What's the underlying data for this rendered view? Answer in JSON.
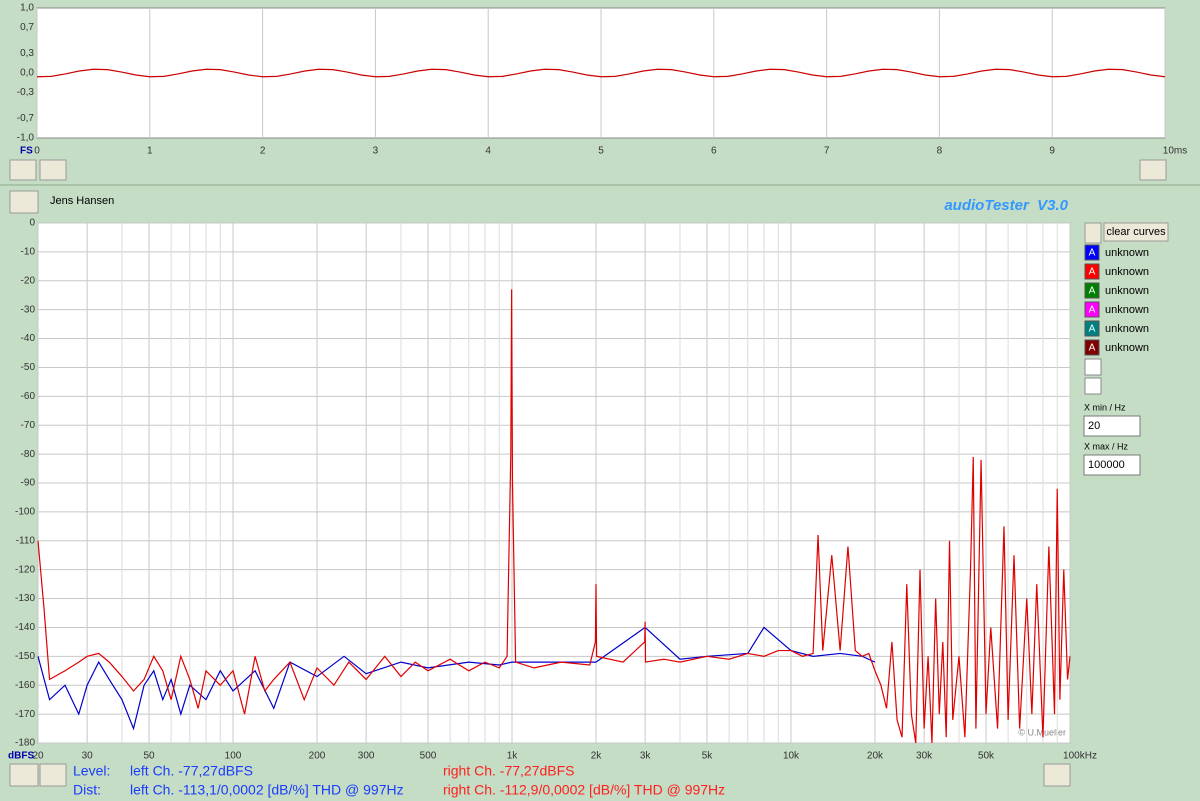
{
  "chart_data": [
    {
      "type": "line",
      "y_label": "FS",
      "xlim": [
        0,
        10
      ],
      "ylim": [
        -1,
        1
      ],
      "grid": "x",
      "xticks": [
        0,
        1,
        2,
        3,
        4,
        5,
        6,
        7,
        8,
        9,
        {
          "value": 10,
          "label": "10ms"
        }
      ],
      "yticks": [
        {
          "value": 1,
          "label": "1,0"
        },
        {
          "value": 0.7,
          "label": "0,7"
        },
        {
          "value": 0.3,
          "label": "0,3"
        },
        {
          "value": 0,
          "label": "0,0"
        },
        {
          "value": -0.3,
          "label": "-0,3"
        },
        {
          "value": -0.7,
          "label": "-0,7"
        },
        {
          "value": -1,
          "label": "-1,0"
        }
      ],
      "series": [
        {
          "color": "#cc0000",
          "x": [
            0,
            0.125,
            0.25,
            0.375,
            0.5,
            0.625,
            0.75,
            0.875,
            1,
            1.125,
            1.25,
            1.375,
            1.5,
            1.625,
            1.75,
            1.875,
            2,
            2.125,
            2.25,
            2.375,
            2.5,
            2.625,
            2.75,
            2.875,
            3,
            3.125,
            3.25,
            3.375,
            3.5,
            3.625,
            3.75,
            3.875,
            4,
            4.125,
            4.25,
            4.375,
            4.5,
            4.625,
            4.75,
            4.875,
            5,
            5.125,
            5.25,
            5.375,
            5.5,
            5.625,
            5.75,
            5.875,
            6,
            6.125,
            6.25,
            6.375,
            6.5,
            6.625,
            6.75,
            6.875,
            7,
            7.125,
            7.25,
            7.375,
            7.5,
            7.625,
            7.75,
            7.875,
            8,
            8.125,
            8.25,
            8.375,
            8.5,
            8.625,
            8.75,
            8.875,
            9,
            9.125,
            9.25,
            9.375,
            9.5,
            9.625,
            9.75,
            9.875,
            10
          ],
          "values": [
            -0.058,
            -0.052,
            -0.015,
            0.031,
            0.058,
            0.052,
            0.015,
            -0.031,
            -0.058,
            -0.052,
            -0.015,
            0.031,
            0.058,
            0.052,
            0.015,
            -0.031,
            -0.058,
            -0.052,
            -0.015,
            0.031,
            0.058,
            0.052,
            0.015,
            -0.031,
            -0.058,
            -0.052,
            -0.015,
            0.031,
            0.058,
            0.052,
            0.015,
            -0.031,
            -0.058,
            -0.052,
            -0.015,
            0.031,
            0.058,
            0.052,
            0.015,
            -0.031,
            -0.058,
            -0.052,
            -0.015,
            0.031,
            0.058,
            0.052,
            0.015,
            -0.031,
            -0.058,
            -0.052,
            -0.015,
            0.031,
            0.058,
            0.052,
            0.015,
            -0.031,
            -0.058,
            -0.052,
            -0.015,
            0.031,
            0.058,
            0.052,
            0.015,
            -0.031,
            -0.058,
            -0.052,
            -0.015,
            0.031,
            0.058,
            0.052,
            0.015,
            -0.031,
            -0.058,
            -0.052,
            -0.015,
            0.031,
            0.058,
            0.052,
            0.015,
            -0.031,
            -0.058
          ]
        }
      ]
    },
    {
      "type": "line",
      "y_label": "dBFS",
      "x_log": true,
      "xlim": [
        20,
        100000
      ],
      "ylim": [
        -180,
        0
      ],
      "grid": "both",
      "xticks": [
        20,
        30,
        50,
        100,
        200,
        300,
        500,
        {
          "value": 1000,
          "label": "1k"
        },
        {
          "value": 2000,
          "label": "2k"
        },
        {
          "value": 3000,
          "label": "3k"
        },
        {
          "value": 5000,
          "label": "5k"
        },
        {
          "value": 10000,
          "label": "10k"
        },
        {
          "value": 20000,
          "label": "20k"
        },
        {
          "value": 30000,
          "label": "30k"
        },
        {
          "value": 50000,
          "label": "50k"
        },
        {
          "value": 100000,
          "label": "100kHz"
        }
      ],
      "x_minor_ticks": [
        40,
        60,
        70,
        80,
        90,
        400,
        600,
        700,
        800,
        900,
        4000,
        6000,
        7000,
        8000,
        9000,
        40000,
        60000,
        70000,
        80000,
        90000
      ],
      "yticks": [
        0,
        -10,
        -20,
        -30,
        -40,
        -50,
        -60,
        -70,
        -80,
        -90,
        -100,
        -110,
        -120,
        -130,
        -140,
        -150,
        -160,
        -170,
        -180
      ],
      "series": [
        {
          "color": "#0000cc",
          "x": [
            20,
            22,
            25,
            28,
            30,
            33,
            36,
            40,
            44,
            48,
            52,
            56,
            60,
            65,
            70,
            80,
            90,
            100,
            120,
            140,
            160,
            200,
            250,
            300,
            400,
            500,
            700,
            900,
            1000,
            1500,
            2000,
            3000,
            4000,
            5000,
            7000,
            8000,
            10000,
            12000,
            15000,
            18000,
            20000
          ],
          "values": [
            -150,
            -165,
            -160,
            -170,
            -160,
            -152,
            -158,
            -165,
            -175,
            -160,
            -155,
            -165,
            -158,
            -170,
            -160,
            -165,
            -155,
            -162,
            -155,
            -168,
            -152,
            -157,
            -150,
            -156,
            -152,
            -154,
            -152,
            -153,
            -152,
            -152,
            -152,
            -140,
            -151,
            -150,
            -149,
            -140,
            -148,
            -150,
            -149,
            -150,
            -152
          ]
        },
        {
          "color": "#e00000",
          "x": [
            20,
            21,
            22,
            25,
            28,
            30,
            33,
            36,
            40,
            44,
            48,
            52,
            56,
            60,
            65,
            70,
            75,
            80,
            90,
            100,
            110,
            120,
            130,
            140,
            160,
            180,
            200,
            230,
            260,
            300,
            350,
            400,
            450,
            500,
            600,
            700,
            800,
            900,
            960,
            990,
            997,
            1004,
            1030,
            1200,
            1500,
            1900,
            1990,
            2000,
            2010,
            2500,
            2990,
            3000,
            3010,
            3500,
            4000,
            5000,
            6000,
            7000,
            8000,
            9000,
            10000,
            11000,
            12000,
            12500,
            13000,
            14000,
            15000,
            16000,
            17000,
            18000,
            19000,
            20000,
            21000,
            22000,
            23000,
            24000,
            25000,
            26000,
            27000,
            28000,
            29000,
            30000,
            31000,
            32000,
            33000,
            34000,
            35000,
            36000,
            37000,
            38000,
            40000,
            42000,
            44000,
            45000,
            46000,
            48000,
            50000,
            52000,
            55000,
            58000,
            60000,
            63000,
            66000,
            70000,
            73000,
            76000,
            80000,
            84000,
            88000,
            90000,
            92000,
            95000,
            98000,
            100000
          ],
          "values": [
            -110,
            -133,
            -158,
            -155,
            -152,
            -150,
            -149,
            -152,
            -157,
            -162,
            -158,
            -150,
            -155,
            -165,
            -150,
            -158,
            -168,
            -155,
            -160,
            -155,
            -170,
            -150,
            -162,
            -158,
            -152,
            -165,
            -154,
            -160,
            -152,
            -158,
            -150,
            -157,
            -152,
            -155,
            -151,
            -155,
            -152,
            -154,
            -150,
            -80,
            -23,
            -90,
            -152,
            -154,
            -152,
            -153,
            -145,
            -125,
            -150,
            -152,
            -145,
            -138,
            -152,
            -151,
            -152,
            -150,
            -151,
            -149,
            -150,
            -148,
            -148,
            -150,
            -149,
            -108,
            -148,
            -115,
            -148,
            -112,
            -148,
            -150,
            -149,
            -155,
            -160,
            -168,
            -145,
            -172,
            -178,
            -125,
            -170,
            -180,
            -120,
            -175,
            -150,
            -180,
            -130,
            -170,
            -145,
            -178,
            -110,
            -172,
            -150,
            -178,
            -120,
            -81,
            -175,
            -82,
            -170,
            -140,
            -175,
            -105,
            -172,
            -115,
            -175,
            -130,
            -170,
            -125,
            -178,
            -112,
            -170,
            -92,
            -165,
            -120,
            -158,
            -150
          ]
        }
      ]
    }
  ],
  "header": {
    "user": "Jens Hansen",
    "app": "audioTester  V3.0"
  },
  "panel": {
    "clear_button": "clear curves",
    "curves": [
      {
        "icon": "A",
        "label": "unknown",
        "color": "#0000ff"
      },
      {
        "icon": "A",
        "label": "unknown",
        "color": "#ff0000"
      },
      {
        "icon": "A",
        "label": "unknown",
        "color": "#008000"
      },
      {
        "icon": "A",
        "label": "unknown",
        "color": "#ff00ff"
      },
      {
        "icon": "A",
        "label": "unknown",
        "color": "#008080"
      },
      {
        "icon": "A",
        "label": "unknown",
        "color": "#800000"
      }
    ],
    "xmin_label": "X min / Hz",
    "xmin": "20",
    "xmax_label": "X max / Hz",
    "xmax": "100000"
  },
  "copyright": "© U.Mueller",
  "status": {
    "level_label": "Level:",
    "level_left": "left Ch. -77,27dBFS",
    "level_right": "right Ch. -77,27dBFS",
    "dist_label": "Dist:",
    "dist_left": "left Ch. -113,1/0,0002 [dB/%] THD @ 997Hz",
    "dist_right": "right Ch. -112,9/0,0002 [dB/%] THD @ 997Hz"
  }
}
